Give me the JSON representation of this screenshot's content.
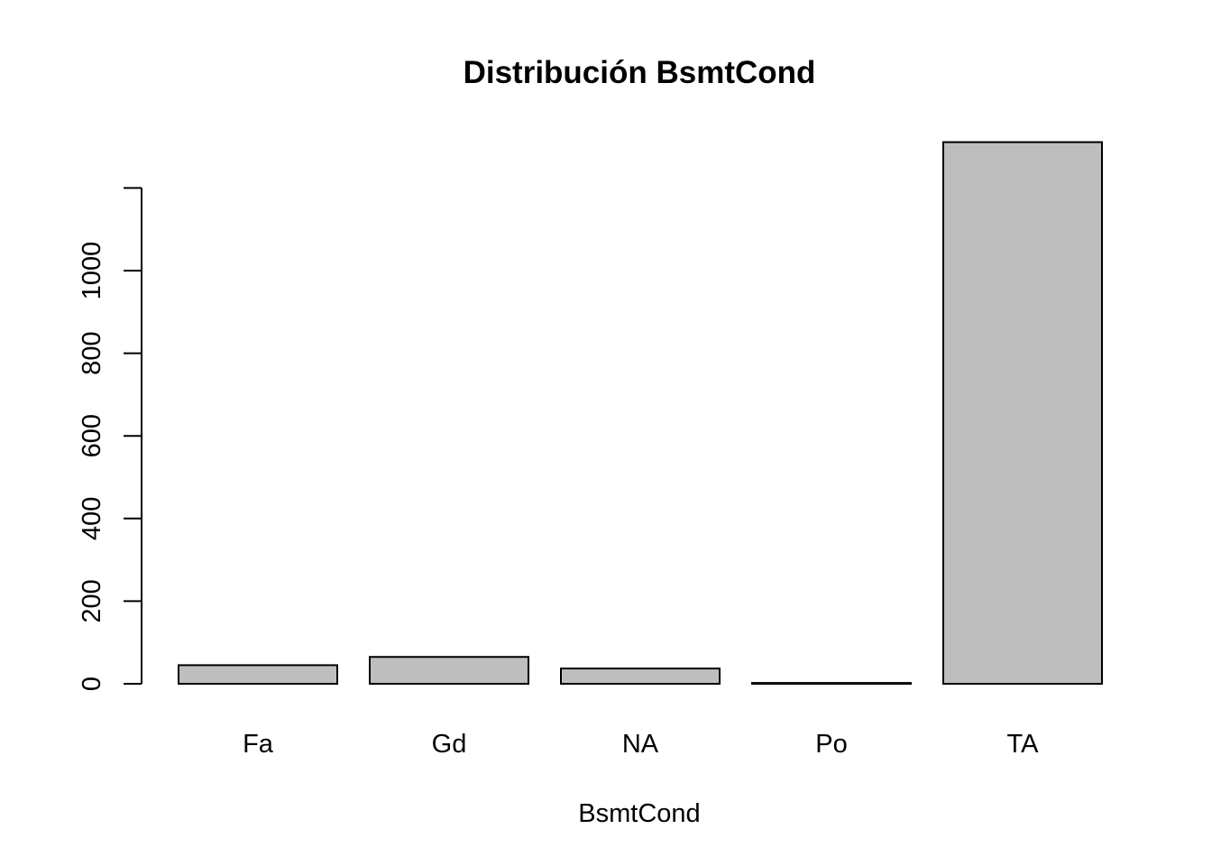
{
  "chart_data": {
    "type": "bar",
    "title": "Distribución BsmtCond",
    "xlabel": "BsmtCond",
    "ylabel": "",
    "categories": [
      "Fa",
      "Gd",
      "NA",
      "Po",
      "TA"
    ],
    "values": [
      45,
      65,
      37,
      2,
      1311
    ],
    "ylim": [
      0,
      1311
    ],
    "yticks": [
      0,
      200,
      400,
      600,
      800,
      1000,
      1200
    ],
    "ytick_labels": [
      "0",
      "200",
      "400",
      "600",
      "800",
      "1000",
      ""
    ],
    "bar_color": "#bebebe",
    "grid": false,
    "legend": "none"
  }
}
